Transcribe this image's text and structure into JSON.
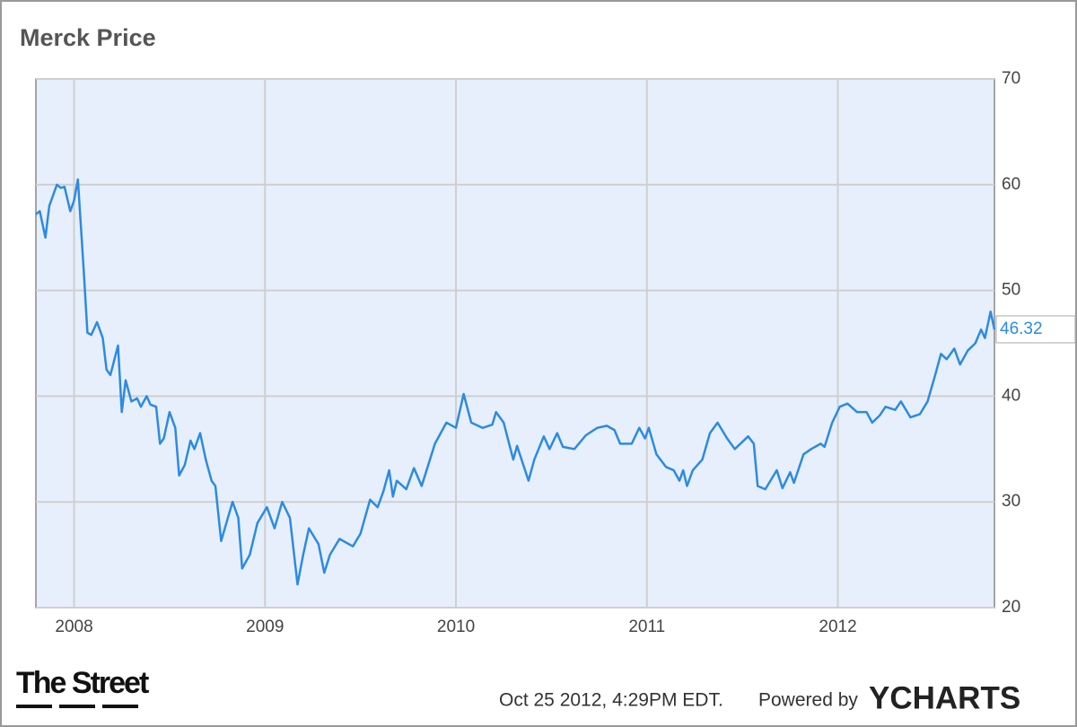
{
  "chart_data": {
    "type": "line",
    "title": "Merck Price",
    "x": [
      2007.8,
      2007.82,
      2007.85,
      2007.87,
      2007.91,
      2007.93,
      2007.95,
      2007.98,
      2008.0,
      2008.02,
      2008.05,
      2008.07,
      2008.09,
      2008.12,
      2008.15,
      2008.17,
      2008.19,
      2008.23,
      2008.25,
      2008.27,
      2008.3,
      2008.33,
      2008.35,
      2008.38,
      2008.4,
      2008.43,
      2008.45,
      2008.47,
      2008.5,
      2008.53,
      2008.55,
      2008.58,
      2008.61,
      2008.63,
      2008.66,
      2008.69,
      2008.72,
      2008.74,
      2008.77,
      2008.83,
      2008.86,
      2008.88,
      2008.92,
      2008.96,
      2009.01,
      2009.05,
      2009.09,
      2009.13,
      2009.17,
      2009.2,
      2009.23,
      2009.28,
      2009.31,
      2009.34,
      2009.39,
      2009.46,
      2009.5,
      2009.55,
      2009.59,
      2009.62,
      2009.65,
      2009.67,
      2009.69,
      2009.74,
      2009.78,
      2009.82,
      2009.89,
      2009.95,
      2010.0,
      2010.04,
      2010.08,
      2010.14,
      2010.19,
      2010.21,
      2010.25,
      2010.3,
      2010.32,
      2010.38,
      2010.41,
      2010.46,
      2010.49,
      2010.53,
      2010.56,
      2010.62,
      2010.68,
      2010.74,
      2010.79,
      2010.83,
      2010.86,
      2010.92,
      2010.96,
      2010.99,
      2011.01,
      2011.05,
      2011.1,
      2011.14,
      2011.17,
      2011.19,
      2011.21,
      2011.24,
      2011.29,
      2011.33,
      2011.37,
      2011.42,
      2011.46,
      2011.53,
      2011.56,
      2011.58,
      2011.62,
      2011.68,
      2011.71,
      2011.75,
      2011.77,
      2011.82,
      2011.86,
      2011.91,
      2011.93,
      2011.97,
      2012.01,
      2012.05,
      2012.1,
      2012.15,
      2012.18,
      2012.22,
      2012.25,
      2012.3,
      2012.33,
      2012.38,
      2012.43,
      2012.47,
      2012.51,
      2012.54,
      2012.57,
      2012.61,
      2012.64,
      2012.68,
      2012.72,
      2012.75,
      2012.77,
      2012.8,
      2012.82
    ],
    "series": [
      {
        "name": "Merck Price",
        "color": "#2b8be3",
        "values": [
          57.2,
          57.5,
          55,
          58,
          60,
          59.7,
          59.8,
          57.5,
          58.5,
          60.5,
          52,
          46,
          45.8,
          47,
          45.5,
          42.5,
          42,
          44.8,
          38.5,
          41.5,
          39.5,
          39.8,
          39,
          40,
          39.2,
          39,
          35.5,
          36,
          38.5,
          37,
          32.5,
          33.5,
          35.8,
          35,
          36.5,
          34,
          32,
          31.5,
          26.3,
          30,
          28.5,
          23.7,
          25,
          28,
          29.5,
          27.5,
          30,
          28.5,
          22.2,
          25,
          27.5,
          26,
          23.3,
          25,
          26.5,
          25.8,
          27,
          30.2,
          29.5,
          31,
          33,
          30.5,
          32,
          31.2,
          33.2,
          31.5,
          35.5,
          37.5,
          37,
          40.2,
          37.5,
          37,
          37.3,
          38.5,
          37.5,
          34,
          35.3,
          32,
          34,
          36.2,
          35,
          36.5,
          35.2,
          35,
          36.3,
          37,
          37.2,
          36.8,
          35.5,
          35.5,
          37,
          36,
          37,
          34.5,
          33.3,
          33,
          32,
          33,
          31.5,
          33,
          34,
          36.5,
          37.5,
          36,
          35,
          36.2,
          35.5,
          31.5,
          31.2,
          33,
          31.3,
          32.8,
          31.8,
          34.5,
          35,
          35.5,
          35.2,
          37.5,
          39,
          39.3,
          38.5,
          38.5,
          37.5,
          38.2,
          39,
          38.7,
          39.5,
          38,
          38.3,
          39.5,
          42,
          44,
          43.5,
          44.5,
          43,
          44.3,
          45,
          46.3,
          45.5,
          48,
          46.32
        ]
      }
    ],
    "xlim": [
      2007.8,
      2012.82
    ],
    "xticks": [
      2008,
      2009,
      2010,
      2011,
      2012
    ],
    "ylim": [
      20,
      70
    ],
    "yticks": [
      20,
      30,
      40,
      50,
      60,
      70
    ],
    "grid": true,
    "footer": {
      "brand": "The Street",
      "timestamp": "Oct 25 2012, 4:29PM EDT.",
      "powered": "Powered by",
      "logo": "YCHARTS"
    }
  }
}
